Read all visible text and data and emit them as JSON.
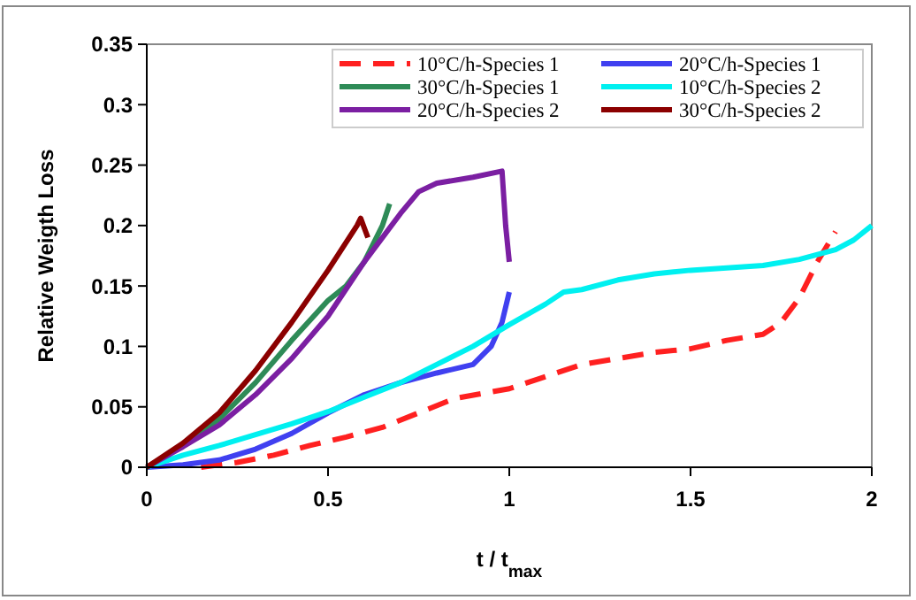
{
  "chart_data": {
    "type": "line",
    "xlabel": "t / t$_{max}$",
    "ylabel": "Relative Weigth Loss",
    "xlim": [
      0,
      2
    ],
    "ylim": [
      0,
      0.35
    ],
    "xticks": [
      0,
      0.5,
      1,
      1.5,
      2
    ],
    "yticks": [
      0,
      0.05,
      0.1,
      0.15,
      0.2,
      0.25,
      0.3,
      0.35
    ],
    "grid": false,
    "legend": "top right",
    "marker": "none",
    "series": [
      {
        "name": "10°C/h-Species 1",
        "color": "#ff2020",
        "line_style": "dashed",
        "x": [
          0.15,
          0.25,
          0.35,
          0.45,
          0.55,
          0.65,
          0.75,
          0.85,
          1.0,
          1.1,
          1.2,
          1.3,
          1.4,
          1.5,
          1.6,
          1.7,
          1.75,
          1.8,
          1.85,
          1.9
        ],
        "values": [
          0,
          0.004,
          0.01,
          0.018,
          0.025,
          0.033,
          0.045,
          0.057,
          0.065,
          0.075,
          0.085,
          0.09,
          0.095,
          0.098,
          0.105,
          0.11,
          0.12,
          0.14,
          0.17,
          0.195
        ]
      },
      {
        "name": "20°C/h-Species 1",
        "color": "#4040f0",
        "line_style": "solid",
        "x": [
          0,
          0.1,
          0.2,
          0.3,
          0.4,
          0.5,
          0.6,
          0.7,
          0.8,
          0.9,
          0.95,
          0.98,
          1.0
        ],
        "values": [
          0,
          0.002,
          0.006,
          0.015,
          0.028,
          0.045,
          0.06,
          0.07,
          0.078,
          0.085,
          0.1,
          0.12,
          0.145
        ]
      },
      {
        "name": "30°C/h-Species 1",
        "color": "#2e8b57",
        "line_style": "solid",
        "x": [
          0,
          0.1,
          0.2,
          0.3,
          0.4,
          0.5,
          0.55,
          0.6,
          0.65,
          0.67
        ],
        "values": [
          0,
          0.018,
          0.04,
          0.07,
          0.105,
          0.138,
          0.15,
          0.17,
          0.2,
          0.218
        ]
      },
      {
        "name": "10°C/h-Species 2",
        "color": "#00f0f0",
        "line_style": "solid",
        "x": [
          0,
          0.1,
          0.2,
          0.3,
          0.4,
          0.5,
          0.6,
          0.7,
          0.8,
          0.9,
          1.0,
          1.1,
          1.15,
          1.2,
          1.3,
          1.4,
          1.5,
          1.6,
          1.7,
          1.8,
          1.9,
          1.95,
          2.0
        ],
        "values": [
          0,
          0.01,
          0.018,
          0.027,
          0.036,
          0.046,
          0.058,
          0.07,
          0.085,
          0.1,
          0.118,
          0.135,
          0.145,
          0.147,
          0.155,
          0.16,
          0.163,
          0.165,
          0.167,
          0.172,
          0.18,
          0.188,
          0.2
        ]
      },
      {
        "name": "20°C/h-Species 2",
        "color": "#7b1fa2",
        "line_style": "solid",
        "x": [
          0,
          0.1,
          0.2,
          0.3,
          0.4,
          0.5,
          0.6,
          0.7,
          0.75,
          0.8,
          0.9,
          0.98,
          0.99,
          1.0
        ],
        "values": [
          0,
          0.017,
          0.035,
          0.06,
          0.09,
          0.125,
          0.17,
          0.21,
          0.228,
          0.235,
          0.24,
          0.245,
          0.2,
          0.17
        ]
      },
      {
        "name": "30°C/h-Species 2",
        "color": "#8b0000",
        "line_style": "solid",
        "x": [
          0,
          0.1,
          0.2,
          0.3,
          0.4,
          0.5,
          0.58,
          0.59,
          0.61
        ],
        "values": [
          0,
          0.02,
          0.045,
          0.08,
          0.12,
          0.163,
          0.2,
          0.206,
          0.19
        ]
      }
    ]
  }
}
